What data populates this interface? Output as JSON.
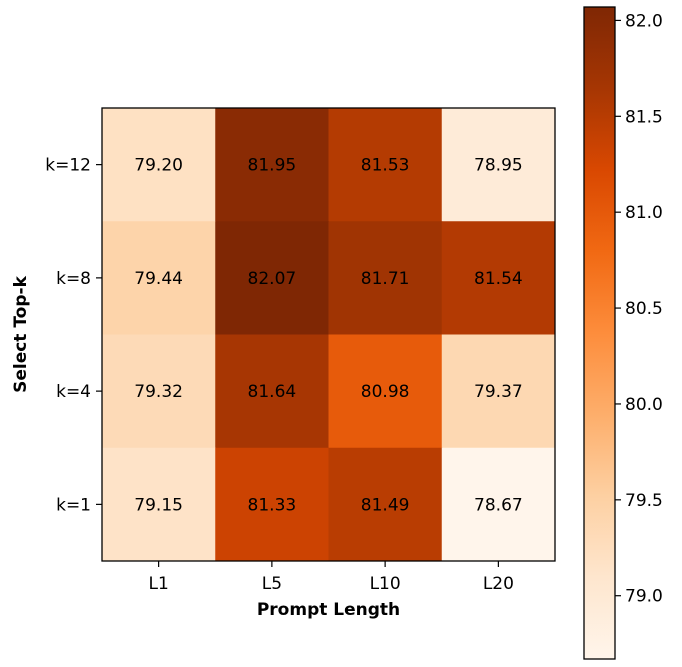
{
  "chart_data": {
    "type": "heatmap",
    "title": "",
    "xlabel": "Prompt Length",
    "ylabel": "Select Top-k",
    "x_categories": [
      "L1",
      "L5",
      "L10",
      "L20"
    ],
    "y_categories": [
      "k=12",
      "k=8",
      "k=4",
      "k=1"
    ],
    "values": [
      [
        79.2,
        81.95,
        81.53,
        78.95
      ],
      [
        79.44,
        82.07,
        81.71,
        81.54
      ],
      [
        79.32,
        81.64,
        80.98,
        79.37
      ],
      [
        79.15,
        81.33,
        81.49,
        78.67
      ]
    ],
    "value_labels": [
      [
        "79.20",
        "81.95",
        "81.53",
        "78.95"
      ],
      [
        "79.44",
        "82.07",
        "81.71",
        "81.54"
      ],
      [
        "79.32",
        "81.64",
        "80.98",
        "79.37"
      ],
      [
        "79.15",
        "81.33",
        "81.49",
        "78.67"
      ]
    ],
    "colormap": "Oranges",
    "colorbar": {
      "vmin": 78.67,
      "vmax": 82.07,
      "ticks": [
        79.0,
        79.5,
        80.0,
        80.5,
        81.0,
        81.5,
        82.0
      ],
      "tick_labels": [
        "79.0",
        "79.5",
        "80.0",
        "80.5",
        "81.0",
        "81.5",
        "82.0"
      ],
      "placement": "right"
    },
    "grid": false
  }
}
